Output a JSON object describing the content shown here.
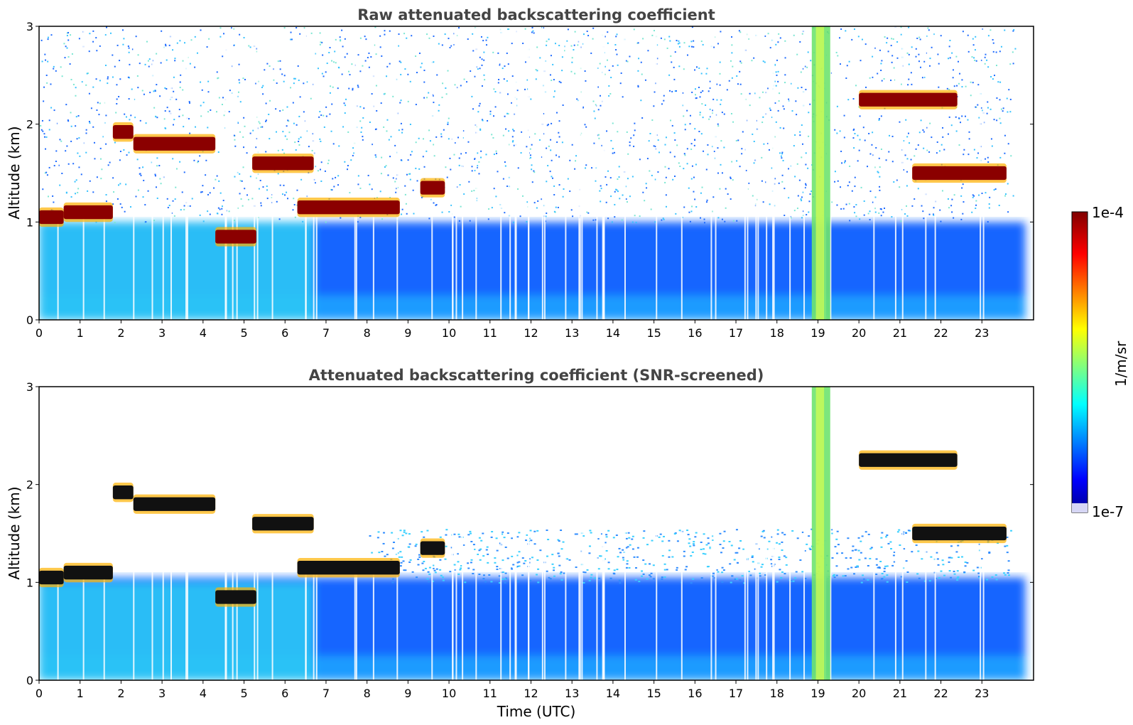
{
  "chart_data": [
    {
      "type": "heatmap",
      "title": "Raw attenuated backscattering coefficient",
      "xlabel": "",
      "ylabel": "Altitude (km)",
      "xlim": [
        0,
        24
      ],
      "ylim": [
        0,
        3
      ],
      "xticks": [
        "0",
        "1",
        "2",
        "3",
        "4",
        "5",
        "6",
        "7",
        "8",
        "9",
        "10",
        "11",
        "12",
        "13",
        "14",
        "15",
        "16",
        "17",
        "18",
        "19",
        "20",
        "21",
        "22",
        "23"
      ],
      "yticks": [
        "0",
        "1",
        "2",
        "3"
      ],
      "grid": false,
      "cloud_layers": [
        {
          "t_start": 0.0,
          "t_end": 0.6,
          "alt": 1.05
        },
        {
          "t_start": 0.6,
          "t_end": 1.8,
          "alt": 1.1
        },
        {
          "t_start": 1.8,
          "t_end": 2.3,
          "alt": 1.92
        },
        {
          "t_start": 2.3,
          "t_end": 4.3,
          "alt": 1.8
        },
        {
          "t_start": 4.3,
          "t_end": 5.3,
          "alt": 0.85
        },
        {
          "t_start": 5.2,
          "t_end": 6.7,
          "alt": 1.6
        },
        {
          "t_start": 6.3,
          "t_end": 8.8,
          "alt": 1.15
        },
        {
          "t_start": 9.3,
          "t_end": 9.9,
          "alt": 1.35
        },
        {
          "t_start": 20.0,
          "t_end": 22.4,
          "alt": 2.25
        },
        {
          "t_start": 21.3,
          "t_end": 23.6,
          "alt": 1.5
        }
      ]
    },
    {
      "type": "heatmap",
      "title": "Attenuated backscattering coefficient (SNR-screened)",
      "xlabel": "Time (UTC)",
      "ylabel": "Altitude (km)",
      "xlim": [
        0,
        24
      ],
      "ylim": [
        0,
        3
      ],
      "xticks": [
        "0",
        "1",
        "2",
        "3",
        "4",
        "5",
        "6",
        "7",
        "8",
        "9",
        "10",
        "11",
        "12",
        "13",
        "14",
        "15",
        "16",
        "17",
        "18",
        "19",
        "20",
        "21",
        "22",
        "23"
      ],
      "yticks": [
        "0",
        "1",
        "2",
        "3"
      ],
      "grid": false,
      "colorbar": {
        "label": "1/m/sr",
        "min_label": "1e-7",
        "max_label": "1e-4",
        "min": 1e-07,
        "max": 0.0001,
        "scale": "log",
        "colormap": "jet"
      }
    }
  ],
  "colors": {
    "high": "#800000",
    "mid": "#00ffff",
    "low": "#0000ff",
    "background": "#ffffff",
    "title": "#444444"
  }
}
